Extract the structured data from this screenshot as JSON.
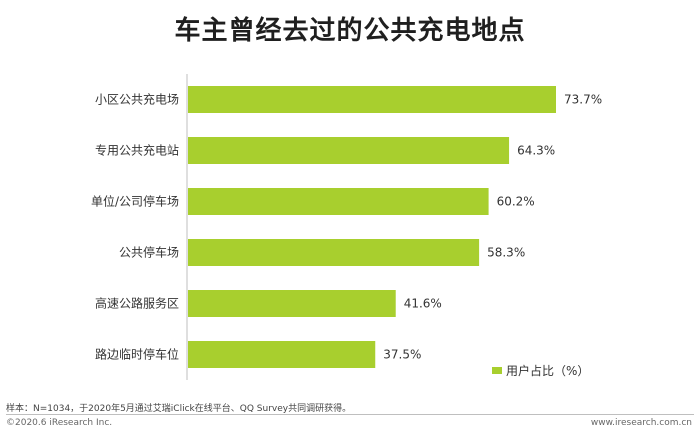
{
  "chart_data": {
    "type": "bar",
    "orientation": "horizontal",
    "title": "车主曾经去过的公共充电地点",
    "categories": [
      "小区公共充电场",
      "专用公共充电站",
      "单位/公司停车场",
      "公共停车场",
      "高速公路服务区",
      "路边临时停车位"
    ],
    "values": [
      73.7,
      64.3,
      60.2,
      58.3,
      41.6,
      37.5
    ],
    "value_labels": [
      "73.7%",
      "64.3%",
      "60.2%",
      "58.3%",
      "41.6%",
      "37.5%"
    ],
    "series": [
      {
        "name": "用户占比（%）",
        "values": [
          73.7,
          64.3,
          60.2,
          58.3,
          41.6,
          37.5
        ]
      }
    ],
    "xlim": [
      0,
      73.7
    ],
    "grid": false,
    "legend_position": "bottom-right",
    "color": "#a8cf2e"
  },
  "legend_label": "用户占比（%）",
  "note": "样本：N=1034，于2020年5月通过艾瑞iClick在线平台、QQ Survey共同调研获得。",
  "copyright": "©2020.6 iResearch Inc.",
  "website": "www.iresearch.com.cn"
}
